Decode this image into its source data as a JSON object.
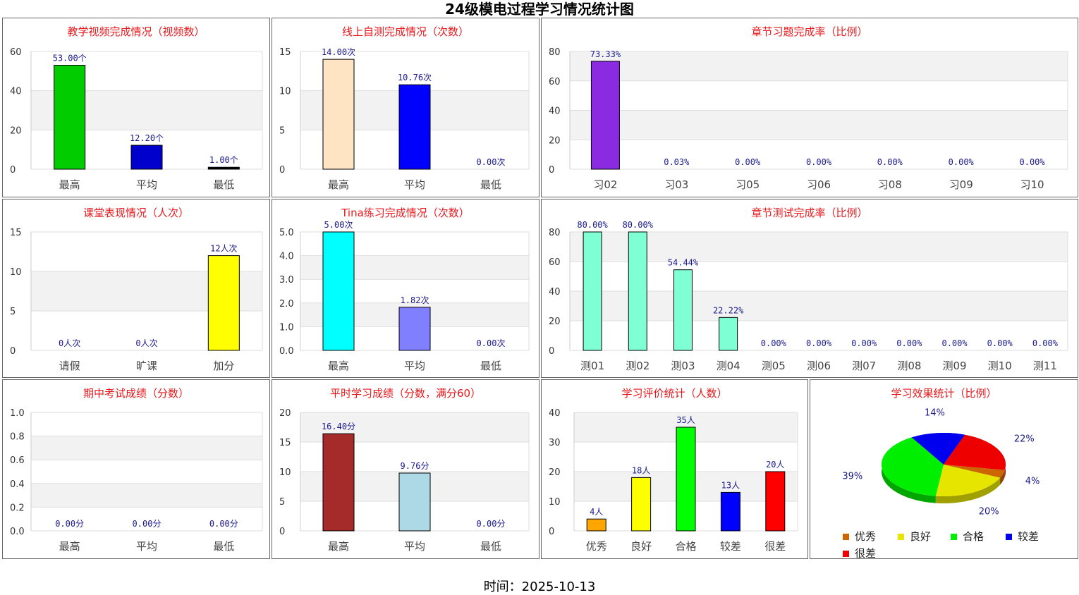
{
  "title": "24级模电过程学习情况统计图",
  "footer": "时间：2025-10-13",
  "chart_data": [
    {
      "id": "c1",
      "type": "bar",
      "title": "教学视频完成情况（视频数）",
      "categories": [
        "最高",
        "平均",
        "最低"
      ],
      "values": [
        53.0,
        12.2,
        1.0
      ],
      "labels": [
        "53.00个",
        "12.20个",
        "1.00个"
      ],
      "colors": [
        "#00cc00",
        "#0000cc",
        "#000000"
      ],
      "ylim": [
        0,
        60
      ],
      "yticks": [
        "0",
        "20",
        "40",
        "60"
      ]
    },
    {
      "id": "c2",
      "type": "bar",
      "title": "线上自测完成情况（次数）",
      "categories": [
        "最高",
        "平均",
        "最低"
      ],
      "values": [
        14.0,
        10.76,
        0.0
      ],
      "labels": [
        "14.00次",
        "10.76次",
        "0.00次"
      ],
      "colors": [
        "#ffe4c4",
        "#0000ff",
        "#000000"
      ],
      "ylim": [
        0,
        15
      ],
      "yticks": [
        "0",
        "5",
        "10",
        "15"
      ]
    },
    {
      "id": "c3",
      "type": "bar",
      "title": "章节习题完成率（比例）",
      "categories": [
        "习02",
        "习03",
        "习05",
        "习06",
        "习08",
        "习09",
        "习10"
      ],
      "values": [
        73.33,
        0.03,
        0,
        0,
        0,
        0,
        0
      ],
      "labels": [
        "73.33%",
        "0.03%",
        "0.00%",
        "0.00%",
        "0.00%",
        "0.00%",
        "0.00%"
      ],
      "colors": [
        "#8a2be2",
        "#8a2be2",
        "#8a2be2",
        "#8a2be2",
        "#8a2be2",
        "#8a2be2",
        "#8a2be2"
      ],
      "ylim": [
        0,
        80
      ],
      "yticks": [
        "0",
        "20",
        "40",
        "60",
        "80"
      ]
    },
    {
      "id": "c4",
      "type": "bar",
      "title": "课堂表现情况（人次）",
      "categories": [
        "请假",
        "旷课",
        "加分"
      ],
      "values": [
        0,
        0,
        12
      ],
      "labels": [
        "0人次",
        "0人次",
        "12人次"
      ],
      "colors": [
        "#000000",
        "#000000",
        "#ffff00"
      ],
      "ylim": [
        0,
        15
      ],
      "yticks": [
        "0",
        "5",
        "10",
        "15"
      ]
    },
    {
      "id": "c5",
      "type": "bar",
      "title": "Tina练习完成情况（次数）",
      "categories": [
        "最高",
        "平均",
        "最低"
      ],
      "values": [
        5.0,
        1.82,
        0.0
      ],
      "labels": [
        "5.00次",
        "1.82次",
        "0.00次"
      ],
      "colors": [
        "#00ffff",
        "#8080ff",
        "#000000"
      ],
      "ylim": [
        0,
        5
      ],
      "yticks": [
        "0.0",
        "1.0",
        "2.0",
        "3.0",
        "4.0",
        "5.0"
      ]
    },
    {
      "id": "c6",
      "type": "bar",
      "title": "章节测试完成率（比例）",
      "categories": [
        "测01",
        "测02",
        "测03",
        "测04",
        "测05",
        "测06",
        "测07",
        "测08",
        "测09",
        "测10",
        "测11"
      ],
      "values": [
        80,
        80,
        54.44,
        22.22,
        0,
        0,
        0,
        0,
        0,
        0,
        0
      ],
      "labels": [
        "80.00%",
        "80.00%",
        "54.44%",
        "22.22%",
        "0.00%",
        "0.00%",
        "0.00%",
        "0.00%",
        "0.00%",
        "0.00%",
        "0.00%"
      ],
      "colors": [
        "#7fffd4",
        "#7fffd4",
        "#7fffd4",
        "#7fffd4",
        "#7fffd4",
        "#7fffd4",
        "#7fffd4",
        "#7fffd4",
        "#7fffd4",
        "#7fffd4",
        "#7fffd4"
      ],
      "ylim": [
        0,
        80
      ],
      "yticks": [
        "0",
        "20",
        "40",
        "60",
        "80"
      ]
    },
    {
      "id": "c7",
      "type": "bar",
      "title": "期中考试成绩（分数）",
      "categories": [
        "最高",
        "平均",
        "最低"
      ],
      "values": [
        0,
        0,
        0
      ],
      "labels": [
        "0.00分",
        "0.00分",
        "0.00分"
      ],
      "colors": [
        "#000000",
        "#000000",
        "#000000"
      ],
      "ylim": [
        0,
        1
      ],
      "yticks": [
        "0.0",
        "0.2",
        "0.4",
        "0.6",
        "0.8",
        "1.0"
      ]
    },
    {
      "id": "c8",
      "type": "bar",
      "title": "平时学习成绩（分数，满分60）",
      "categories": [
        "最高",
        "平均",
        "最低"
      ],
      "values": [
        16.4,
        9.76,
        0
      ],
      "labels": [
        "16.40分",
        "9.76分",
        "0.00分"
      ],
      "colors": [
        "#a52a2a",
        "#add8e6",
        "#000000"
      ],
      "ylim": [
        0,
        20
      ],
      "yticks": [
        "0",
        "5",
        "10",
        "15",
        "20"
      ]
    },
    {
      "id": "c9",
      "type": "bar",
      "title": "学习评价统计（人数）",
      "categories": [
        "优秀",
        "良好",
        "合格",
        "较差",
        "很差"
      ],
      "values": [
        4,
        18,
        35,
        13,
        20
      ],
      "labels": [
        "4人",
        "18人",
        "35人",
        "13人",
        "20人"
      ],
      "colors": [
        "#ffa500",
        "#ffff00",
        "#00ff00",
        "#0000ff",
        "#ff0000"
      ],
      "ylim": [
        0,
        40
      ],
      "yticks": [
        "0",
        "10",
        "20",
        "30",
        "40"
      ]
    },
    {
      "id": "c10",
      "type": "pie",
      "title": "学习效果统计（比例）",
      "categories": [
        "优秀",
        "良好",
        "合格",
        "较差",
        "很差"
      ],
      "values": [
        4,
        20,
        39,
        14,
        22
      ],
      "labels": [
        "4%",
        "20%",
        "39%",
        "14%",
        "22%"
      ],
      "colors": [
        "#cc6600",
        "#e5e500",
        "#00ee00",
        "#0000ee",
        "#ee0000"
      ],
      "legend": [
        "优秀",
        "良好",
        "合格",
        "较差",
        "很差"
      ]
    }
  ]
}
